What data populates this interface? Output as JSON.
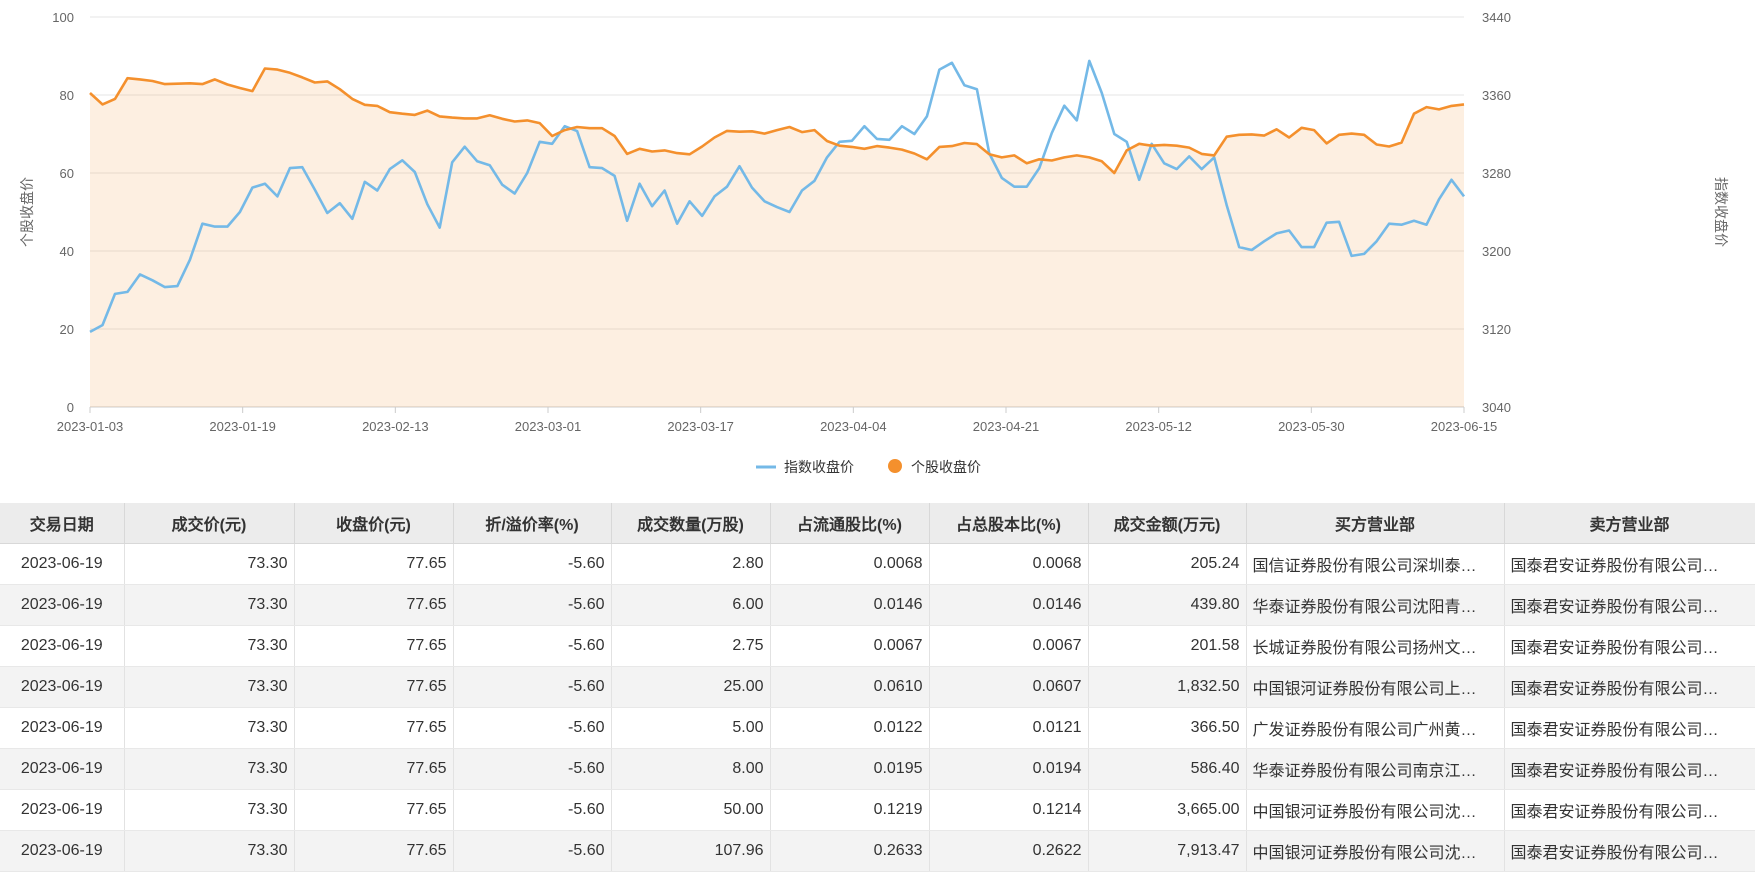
{
  "chart_data": {
    "type": "line",
    "x_tick_labels": [
      "2023-01-03",
      "2023-01-19",
      "2023-02-13",
      "2023-03-01",
      "2023-03-17",
      "2023-04-04",
      "2023-04-21",
      "2023-05-12",
      "2023-05-30",
      "2023-06-15"
    ],
    "y_left": {
      "title": "个股收盘价",
      "ticks": [
        "0",
        "20",
        "40",
        "60",
        "80",
        "100"
      ],
      "range": [
        0,
        100
      ]
    },
    "y_right": {
      "title": "指数收盘价",
      "ticks": [
        "3040",
        "3120",
        "3200",
        "3280",
        "3360",
        "3440"
      ],
      "range": [
        3040,
        3440
      ]
    },
    "series": [
      {
        "name": "指数收盘价",
        "axis": "right",
        "color": "#74b9e7",
        "style": "line",
        "values": [
          3117,
          3124,
          3156,
          3158,
          3176,
          3170,
          3163,
          3164,
          3191,
          3228,
          3225,
          3225,
          3240,
          3265,
          3269,
          3256,
          3285,
          3286,
          3263,
          3239,
          3249,
          3233,
          3271,
          3262,
          3284,
          3293,
          3281,
          3248,
          3224,
          3291,
          3307,
          3292,
          3288,
          3268,
          3259,
          3280,
          3312,
          3310,
          3328,
          3323,
          3286,
          3285,
          3277,
          3231,
          3269,
          3246,
          3262,
          3228,
          3251,
          3236,
          3256,
          3266,
          3287,
          3265,
          3251,
          3245,
          3240,
          3262,
          3272,
          3296,
          3312,
          3313,
          3328,
          3315,
          3314,
          3328,
          3320,
          3338,
          3386,
          3393,
          3370,
          3366,
          3300,
          3275,
          3266,
          3266,
          3285,
          3321,
          3349,
          3334,
          3395,
          3362,
          3320,
          3312,
          3273,
          3310,
          3290,
          3284,
          3297,
          3284,
          3296,
          3247,
          3204,
          3201,
          3210,
          3218,
          3221,
          3204,
          3204,
          3229,
          3230,
          3195,
          3197,
          3210,
          3228,
          3227,
          3231,
          3227,
          3253,
          3273,
          3256
        ]
      },
      {
        "name": "个股收盘价",
        "axis": "left",
        "color": "#f4902d",
        "style": "area",
        "values": [
          80.5,
          77.6,
          79.0,
          84.3,
          84.0,
          83.6,
          82.8,
          82.9,
          83.0,
          82.8,
          84.0,
          82.7,
          81.8,
          81.0,
          86.8,
          86.5,
          85.7,
          84.5,
          83.2,
          83.5,
          81.5,
          79.0,
          77.5,
          77.2,
          75.6,
          75.2,
          74.9,
          76.0,
          74.5,
          74.2,
          74.0,
          74.0,
          74.8,
          73.9,
          73.2,
          73.5,
          72.8,
          69.5,
          71.0,
          71.8,
          71.5,
          71.5,
          69.5,
          64.9,
          66.2,
          65.5,
          65.8,
          65.1,
          64.8,
          66.8,
          69.1,
          70.8,
          70.6,
          70.7,
          70.1,
          71.0,
          71.8,
          70.5,
          71.0,
          68.2,
          67.0,
          66.7,
          66.2,
          66.9,
          66.5,
          66.0,
          65.0,
          63.5,
          66.7,
          66.9,
          67.7,
          67.4,
          64.8,
          64.0,
          64.5,
          62.5,
          63.5,
          63.2,
          64.0,
          64.5,
          64.0,
          63.0,
          60.0,
          65.8,
          67.5,
          67.0,
          67.2,
          67.0,
          66.5,
          64.9,
          64.5,
          69.3,
          69.8,
          69.9,
          69.6,
          71.2,
          69.1,
          71.6,
          71.0,
          67.6,
          69.8,
          70.1,
          69.8,
          67.3,
          66.8,
          67.8,
          75.2,
          76.9,
          76.3,
          77.2,
          77.6
        ]
      }
    ],
    "legend": [
      {
        "label": "指数收盘价",
        "marker": "line",
        "color": "#74b9e7"
      },
      {
        "label": "个股收盘价",
        "marker": "circle",
        "color": "#f4902d"
      }
    ],
    "legend_position": "bottom-center",
    "grid": true
  },
  "table": {
    "headers": [
      "交易日期",
      "成交价(元)",
      "收盘价(元)",
      "折/溢价率(%)",
      "成交数量(万股)",
      "占流通股比(%)",
      "占总股本比(%)",
      "成交金额(万元)",
      "买方营业部",
      "卖方营业部"
    ],
    "rows": [
      [
        "2023-06-19",
        "73.30",
        "77.65",
        "-5.60",
        "2.80",
        "0.0068",
        "0.0068",
        "205.24",
        "国信证券股份有限公司深圳泰…",
        "国泰君安证券股份有限公司…"
      ],
      [
        "2023-06-19",
        "73.30",
        "77.65",
        "-5.60",
        "6.00",
        "0.0146",
        "0.0146",
        "439.80",
        "华泰证券股份有限公司沈阳青…",
        "国泰君安证券股份有限公司…"
      ],
      [
        "2023-06-19",
        "73.30",
        "77.65",
        "-5.60",
        "2.75",
        "0.0067",
        "0.0067",
        "201.58",
        "长城证券股份有限公司扬州文…",
        "国泰君安证券股份有限公司…"
      ],
      [
        "2023-06-19",
        "73.30",
        "77.65",
        "-5.60",
        "25.00",
        "0.0610",
        "0.0607",
        "1,832.50",
        "中国银河证券股份有限公司上…",
        "国泰君安证券股份有限公司…"
      ],
      [
        "2023-06-19",
        "73.30",
        "77.65",
        "-5.60",
        "5.00",
        "0.0122",
        "0.0121",
        "366.50",
        "广发证券股份有限公司广州黄…",
        "国泰君安证券股份有限公司…"
      ],
      [
        "2023-06-19",
        "73.30",
        "77.65",
        "-5.60",
        "8.00",
        "0.0195",
        "0.0194",
        "586.40",
        "华泰证券股份有限公司南京江…",
        "国泰君安证券股份有限公司…"
      ],
      [
        "2023-06-19",
        "73.30",
        "77.65",
        "-5.60",
        "50.00",
        "0.1219",
        "0.1214",
        "3,665.00",
        "中国银河证券股份有限公司沈…",
        "国泰君安证券股份有限公司…"
      ],
      [
        "2023-06-19",
        "73.30",
        "77.65",
        "-5.60",
        "107.96",
        "0.2633",
        "0.2622",
        "7,913.47",
        "中国银河证券股份有限公司沈…",
        "国泰君安证券股份有限公司…"
      ]
    ]
  }
}
